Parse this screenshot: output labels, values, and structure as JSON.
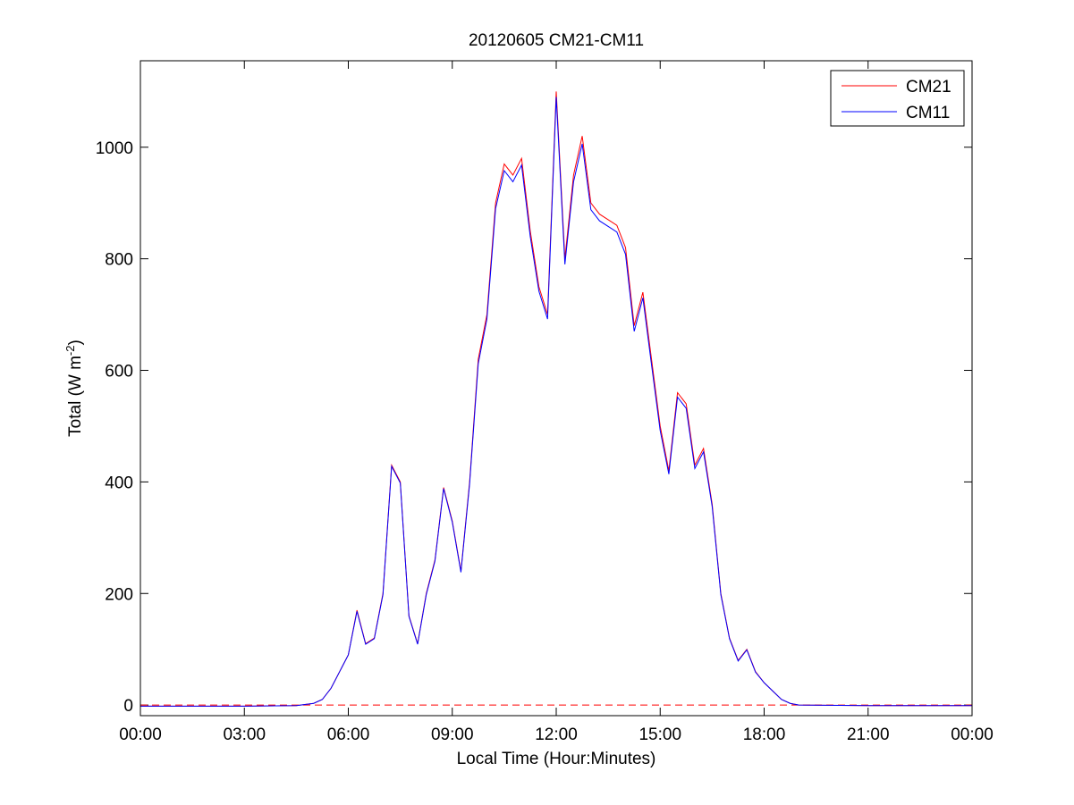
{
  "chart_data": {
    "type": "line",
    "title": "20120605 CM21-CM11",
    "xlabel": "Local Time (Hour:Minutes)",
    "ylabel": [
      "Total (W m",
      "-2",
      ")"
    ],
    "x": [
      0,
      3,
      4.5,
      5,
      5.25,
      5.5,
      5.75,
      6,
      6.25,
      6.5,
      6.75,
      7,
      7.25,
      7.5,
      7.75,
      8,
      8.25,
      8.5,
      8.75,
      9,
      9.25,
      9.5,
      9.75,
      10,
      10.25,
      10.5,
      10.75,
      11,
      11.25,
      11.5,
      11.75,
      12,
      12.25,
      12.5,
      12.75,
      13,
      13.25,
      13.5,
      13.75,
      14,
      14.25,
      14.5,
      14.75,
      15,
      15.25,
      15.5,
      15.75,
      16,
      16.25,
      16.5,
      16.75,
      17,
      17.25,
      17.5,
      17.75,
      18,
      18.25,
      18.5,
      18.75,
      19,
      21,
      24
    ],
    "series": [
      {
        "name": "CM21",
        "color": "#ff0000",
        "values": [
          -2,
          -2,
          -1,
          3,
          10,
          30,
          60,
          90,
          170,
          110,
          120,
          200,
          430,
          400,
          160,
          110,
          200,
          260,
          390,
          330,
          240,
          400,
          620,
          700,
          900,
          970,
          950,
          980,
          850,
          750,
          700,
          1100,
          800,
          950,
          1020,
          900,
          880,
          870,
          860,
          820,
          680,
          740,
          620,
          500,
          420,
          560,
          540,
          430,
          460,
          360,
          200,
          120,
          80,
          100,
          60,
          40,
          25,
          10,
          3,
          0,
          -1,
          -1
        ]
      },
      {
        "name": "CM11",
        "color": "#0000ff",
        "values": [
          -2,
          -2,
          -1,
          3,
          10,
          30,
          60,
          90,
          168,
          109,
          119,
          198,
          428,
          398,
          159,
          109,
          198,
          258,
          388,
          328,
          238,
          396,
          612,
          692,
          890,
          958,
          938,
          968,
          840,
          742,
          692,
          1090,
          790,
          938,
          1006,
          888,
          868,
          858,
          848,
          808,
          670,
          730,
          610,
          492,
          414,
          552,
          532,
          424,
          454,
          356,
          198,
          119,
          79,
          99,
          59,
          40,
          25,
          10,
          3,
          0,
          -1,
          -1
        ]
      }
    ],
    "hlines": [
      {
        "y": 0,
        "color": "#ff0000",
        "dash": true
      }
    ],
    "xlim": [
      0,
      24
    ],
    "xticks": [
      {
        "value": 0,
        "label": "00:00"
      },
      {
        "value": 3,
        "label": "03:00"
      },
      {
        "value": 6,
        "label": "06:00"
      },
      {
        "value": 9,
        "label": "09:00"
      },
      {
        "value": 12,
        "label": "12:00"
      },
      {
        "value": 15,
        "label": "15:00"
      },
      {
        "value": 18,
        "label": "18:00"
      },
      {
        "value": 21,
        "label": "21:00"
      },
      {
        "value": 24,
        "label": "00:00"
      }
    ],
    "ylim": [
      -19,
      1155
    ],
    "yticks": [
      0,
      200,
      400,
      600,
      800,
      1000
    ],
    "grid": false,
    "legend": "top-right"
  }
}
